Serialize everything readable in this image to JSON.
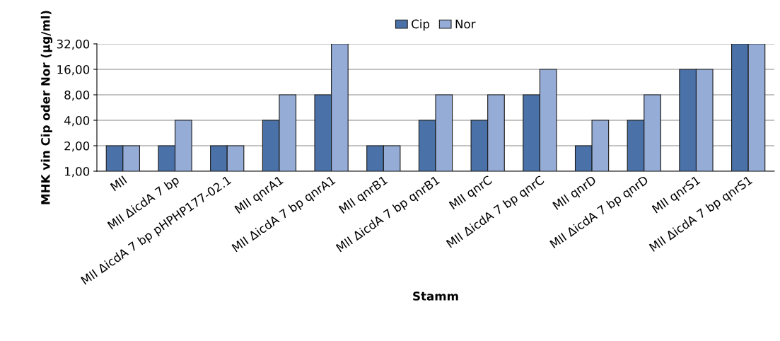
{
  "chart_data": {
    "type": "bar",
    "xlabel": "Stamm",
    "ylabel": "MHK vin Cip oder Nor (µg/ml)",
    "categories": [
      "MII",
      "MII ΔicdA 7 bp",
      "MII ΔicdA 7 bp pHPHP177-02.1",
      "MII qnrA1",
      "MII ΔicdA 7 bp qnrA1",
      "MII qnrB1",
      "MII ΔicdA 7 bp qnrB1",
      "MII qnrC",
      "MII ΔicdA 7 bp qnrC",
      "MII qnrD",
      "MII ΔicdA 7 bp qnrD",
      "MII qnrS1",
      "MII ΔicdA 7 bp qnrS1"
    ],
    "series": [
      {
        "name": "Cip",
        "color": "#4a72a8",
        "values": [
          2,
          2,
          2,
          4,
          8,
          2,
          4,
          4,
          8,
          2,
          4,
          16,
          32
        ]
      },
      {
        "name": "Nor",
        "color": "#95acd6",
        "values": [
          2,
          4,
          2,
          8,
          32,
          2,
          8,
          8,
          16,
          4,
          8,
          16,
          32
        ]
      }
    ],
    "log": "y",
    "ylim": [
      1,
      32
    ],
    "yticks": [
      {
        "value": 1,
        "label": "1,00"
      },
      {
        "value": 2,
        "label": "2,00"
      },
      {
        "value": 4,
        "label": "4,00"
      },
      {
        "value": 8,
        "label": "8,00"
      },
      {
        "value": 16,
        "label": "16,00"
      },
      {
        "value": 32,
        "label": "32,00"
      }
    ],
    "grid": "y",
    "legend": "top"
  }
}
